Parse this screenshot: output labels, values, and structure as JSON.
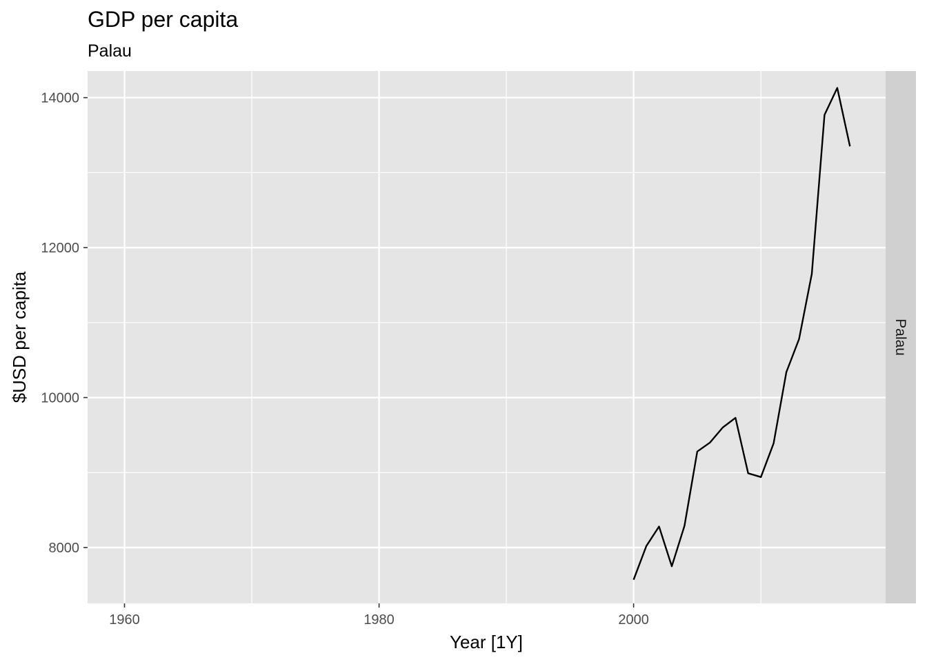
{
  "chart_data": {
    "type": "line",
    "title": "GDP per capita",
    "subtitle": "Palau",
    "xlabel": "Year [1Y]",
    "ylabel": "$USD per capita",
    "facet_label": "Palau",
    "xlim": [
      1957.1,
      2019.8
    ],
    "ylim": [
      7255,
      14355
    ],
    "x_ticks": [
      1960,
      1980,
      2000
    ],
    "x_minor": [
      1970,
      1990,
      2010
    ],
    "y_ticks": [
      8000,
      10000,
      12000,
      14000
    ],
    "y_minor": [
      9000,
      11000,
      13000
    ],
    "grid": true,
    "line_color": "#000000",
    "panel_color": "#e5e5e5",
    "strip_color": "#d0d0d0",
    "series": [
      {
        "x": [
          2000,
          2001,
          2002,
          2003,
          2004,
          2005,
          2006,
          2007,
          2008,
          2009,
          2010,
          2011,
          2012,
          2013,
          2014,
          2015,
          2016,
          2017
        ],
        "values": [
          7570,
          8020,
          8280,
          7750,
          8290,
          9280,
          9400,
          9600,
          9730,
          8990,
          8940,
          9390,
          10340,
          10780,
          11650,
          13770,
          14130,
          13350
        ]
      }
    ]
  }
}
